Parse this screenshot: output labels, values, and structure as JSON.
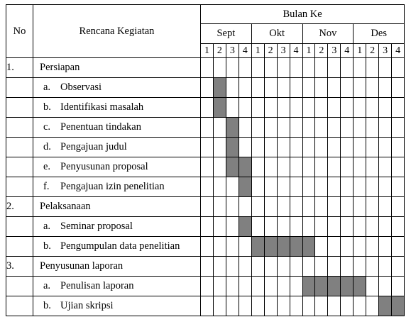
{
  "header": {
    "no": "No",
    "kegiatan": "Rencana Kegiatan",
    "bulan": "Bulan Ke",
    "months": [
      "Sept",
      "Okt",
      "Nov",
      "Des"
    ],
    "weeks": [
      "1",
      "2",
      "3",
      "4"
    ]
  },
  "rows": [
    {
      "type": "phase",
      "no": "1.",
      "label": "Persiapan",
      "filled": []
    },
    {
      "type": "sub",
      "letter": "a.",
      "label": "Observasi",
      "filled": [
        1
      ]
    },
    {
      "type": "sub",
      "letter": "b.",
      "label": "Identifikasi masalah",
      "filled": [
        1
      ]
    },
    {
      "type": "sub",
      "letter": "c.",
      "label": "Penentuan tindakan",
      "filled": [
        2
      ]
    },
    {
      "type": "sub",
      "letter": "d.",
      "label": "Pengajuan judul",
      "filled": [
        2
      ]
    },
    {
      "type": "sub",
      "letter": "e.",
      "label": "Penyusunan proposal",
      "filled": [
        2,
        3
      ]
    },
    {
      "type": "sub",
      "letter": "f.",
      "label": "Pengajuan izin penelitian",
      "filled": [
        3
      ]
    },
    {
      "type": "phase",
      "no": "2.",
      "label": "Pelaksanaan",
      "filled": []
    },
    {
      "type": "sub",
      "letter": "a.",
      "label": "Seminar proposal",
      "filled": [
        3
      ]
    },
    {
      "type": "sub",
      "letter": "b.",
      "label": "Pengumpulan data penelitian",
      "filled": [
        4,
        5,
        6,
        7,
        8
      ]
    },
    {
      "type": "phase",
      "no": "3.",
      "label": "Penyusunan laporan",
      "filled": []
    },
    {
      "type": "sub",
      "letter": "a.",
      "label": "Penulisan laporan",
      "filled": [
        8,
        9,
        10,
        11,
        12
      ]
    },
    {
      "type": "sub",
      "letter": "b.",
      "label": "Ujian skripsi",
      "filled": [
        14,
        15
      ]
    }
  ],
  "colors": {
    "filled": "#808080",
    "empty": "#ffffff",
    "border": "#000000"
  }
}
